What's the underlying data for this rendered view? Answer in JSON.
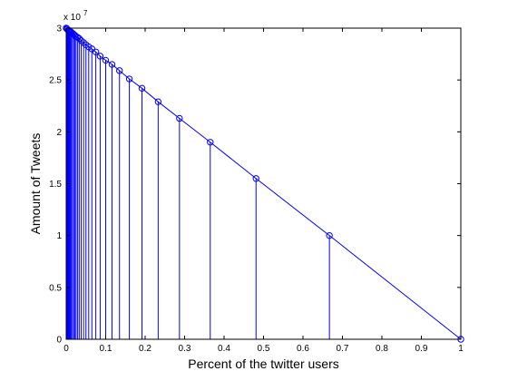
{
  "chart_data": {
    "type": "line",
    "title": "",
    "xlabel": "Percent of the twitter users",
    "ylabel": "Amount of Tweets",
    "xlim": [
      0,
      1
    ],
    "ylim": [
      0,
      3
    ],
    "y_multiplier": "x 10",
    "y_multiplier_exponent": "7",
    "grid": false,
    "legend": "none",
    "line_color": "#0000ff",
    "x_ticks": [
      0,
      0.1,
      0.2,
      0.3,
      0.4,
      0.5,
      0.6,
      0.7,
      0.8,
      0.9,
      1
    ],
    "x_tick_labels": [
      "0",
      "0.1",
      "0.2",
      "0.3",
      "0.4",
      "0.5",
      "0.6",
      "0.7",
      "0.8",
      "0.9",
      "1"
    ],
    "y_ticks": [
      0,
      0.5,
      1,
      1.5,
      2,
      2.5,
      3
    ],
    "y_tick_labels": [
      "0",
      "0.5",
      "1",
      "1.5",
      "2",
      "2.5",
      "3"
    ],
    "series": [
      {
        "marker": "circle",
        "stems": true,
        "points": [
          {
            "x": 1.0,
            "y": 0.0
          },
          {
            "x": 0.667,
            "y": 1.0
          },
          {
            "x": 0.481,
            "y": 1.55
          },
          {
            "x": 0.365,
            "y": 1.9
          },
          {
            "x": 0.287,
            "y": 2.13
          },
          {
            "x": 0.233,
            "y": 2.29
          },
          {
            "x": 0.192,
            "y": 2.42
          },
          {
            "x": 0.16,
            "y": 2.51
          },
          {
            "x": 0.135,
            "y": 2.59
          },
          {
            "x": 0.116,
            "y": 2.65
          },
          {
            "x": 0.1,
            "y": 2.69
          },
          {
            "x": 0.086,
            "y": 2.73
          },
          {
            "x": 0.075,
            "y": 2.77
          },
          {
            "x": 0.065,
            "y": 2.8
          },
          {
            "x": 0.057,
            "y": 2.82
          },
          {
            "x": 0.05,
            "y": 2.84
          },
          {
            "x": 0.044,
            "y": 2.86
          },
          {
            "x": 0.038,
            "y": 2.88
          },
          {
            "x": 0.033,
            "y": 2.9
          },
          {
            "x": 0.029,
            "y": 2.91
          },
          {
            "x": 0.025,
            "y": 2.92
          },
          {
            "x": 0.022,
            "y": 2.93
          },
          {
            "x": 0.019,
            "y": 2.94
          },
          {
            "x": 0.016,
            "y": 2.95
          },
          {
            "x": 0.013,
            "y": 2.96
          },
          {
            "x": 0.011,
            "y": 2.965
          },
          {
            "x": 0.009,
            "y": 2.97
          },
          {
            "x": 0.007,
            "y": 2.975
          },
          {
            "x": 0.005,
            "y": 2.98
          },
          {
            "x": 0.003,
            "y": 2.99
          },
          {
            "x": 0.0015,
            "y": 2.995
          },
          {
            "x": 0.0,
            "y": 3.0
          }
        ]
      }
    ]
  }
}
